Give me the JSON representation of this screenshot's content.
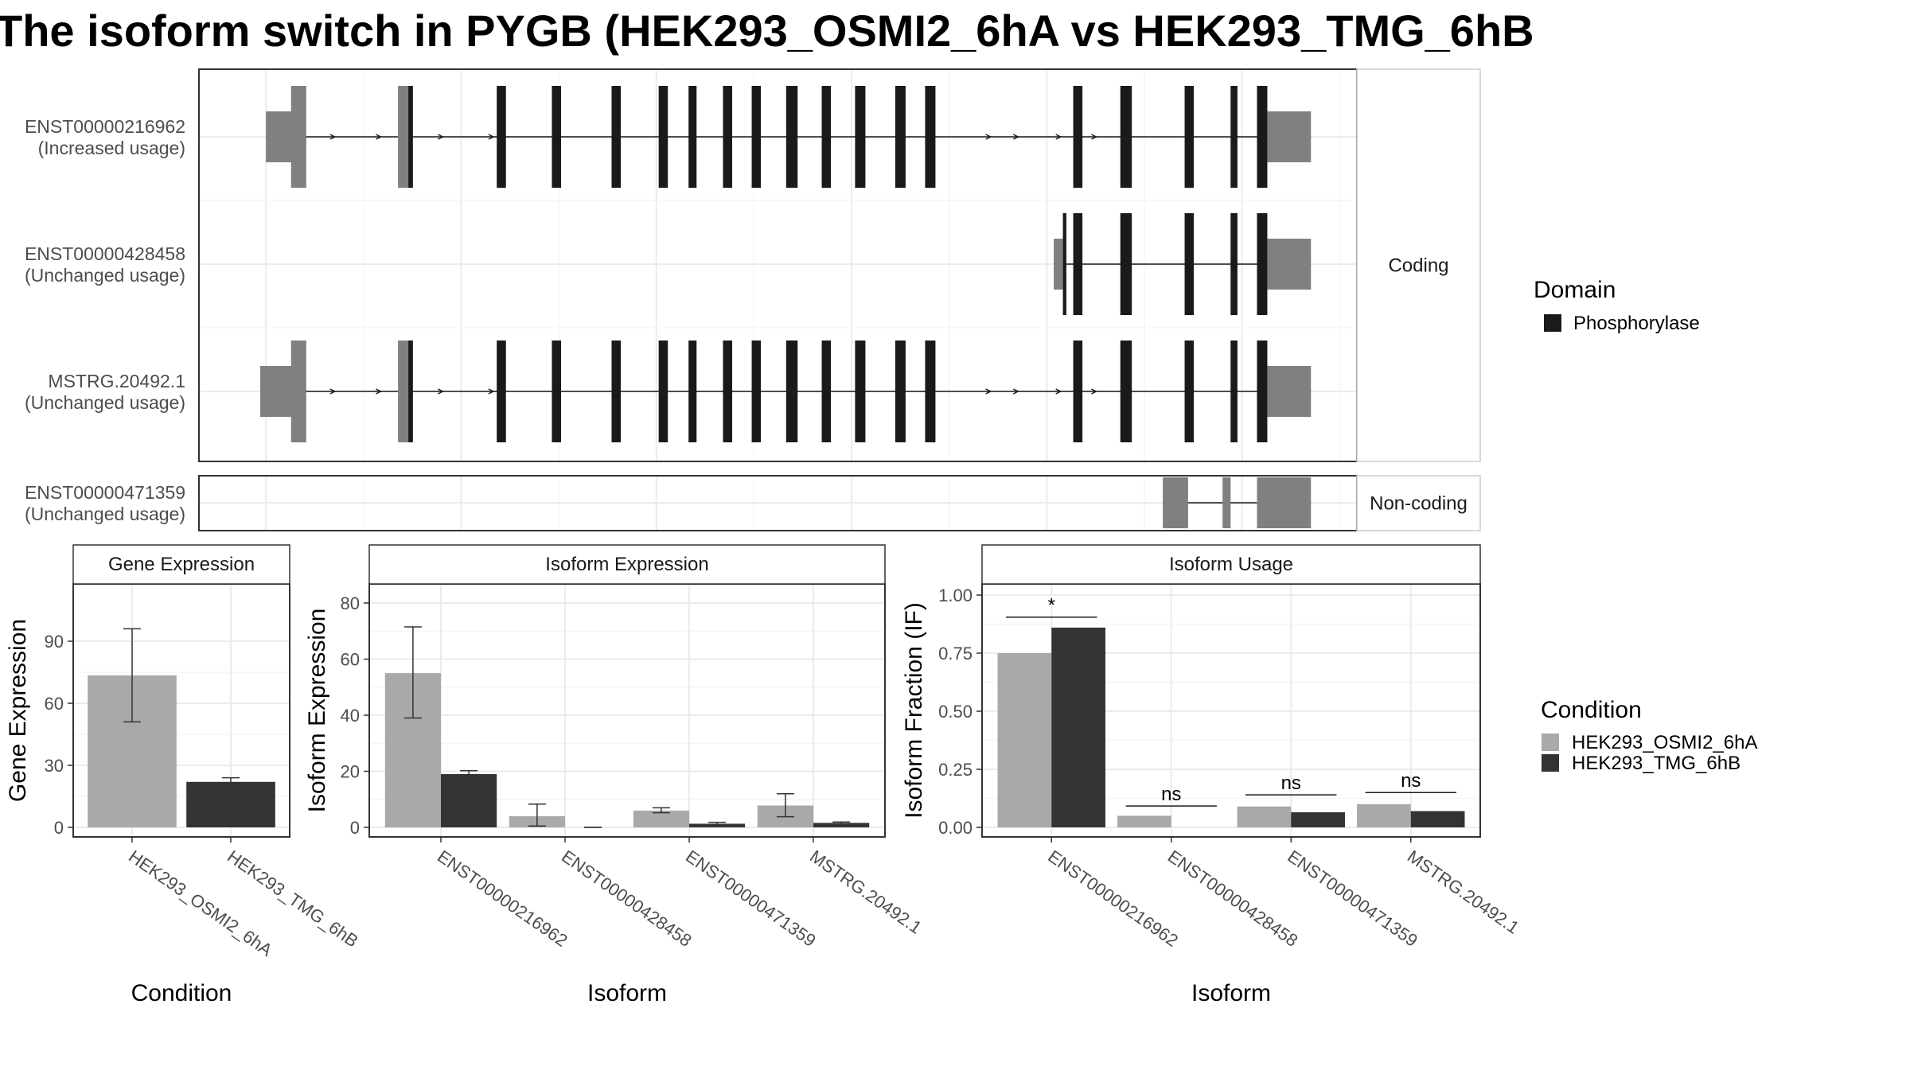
{
  "title": "The isoform switch in PYGB (HEK293_OSMI2_6hA vs HEK293_TMG_6hB",
  "chart_data": [
    {
      "type": "gene-structure",
      "panels": [
        {
          "strip": "Coding",
          "transcripts": [
            {
              "name": "ENST00000216962",
              "usage": "(Increased usage)",
              "exons": [
                [
                  0.05,
                  0.072,
                  "utr"
                ],
                [
                  0.072,
                  0.085,
                  "cds"
                ],
                [
                  0.165,
                  0.174,
                  "utr"
                ],
                [
                  0.174,
                  0.178,
                  "cds"
                ],
                [
                  0.251,
                  0.259,
                  "cds"
                ],
                [
                  0.299,
                  0.307,
                  "cds"
                ],
                [
                  0.351,
                  0.359,
                  "cds"
                ],
                [
                  0.392,
                  0.4,
                  "cds"
                ],
                [
                  0.418,
                  0.425,
                  "cds"
                ],
                [
                  0.448,
                  0.456,
                  "cds"
                ],
                [
                  0.473,
                  0.481,
                  "cds"
                ],
                [
                  0.503,
                  0.513,
                  "cds"
                ],
                [
                  0.534,
                  0.542,
                  "cds"
                ],
                [
                  0.563,
                  0.572,
                  "cds"
                ],
                [
                  0.598,
                  0.607,
                  "cds"
                ],
                [
                  0.624,
                  0.633,
                  "cds"
                ],
                [
                  0.753,
                  0.761,
                  "cds"
                ],
                [
                  0.794,
                  0.804,
                  "cds"
                ],
                [
                  0.85,
                  0.858,
                  "cds"
                ],
                [
                  0.89,
                  0.896,
                  "cds"
                ],
                [
                  0.913,
                  0.922,
                  "cds"
                ],
                [
                  0.922,
                  0.96,
                  "utr"
                ]
              ],
              "arrows": [
                0.11,
                0.15,
                0.204,
                0.248,
                0.681,
                0.705,
                0.742,
                0.773
              ]
            },
            {
              "name": "ENST00000428458",
              "usage": "(Unchanged usage)",
              "exons": [
                [
                  0.736,
                  0.744,
                  "utr"
                ],
                [
                  0.744,
                  0.747,
                  "cds"
                ],
                [
                  0.753,
                  0.761,
                  "cds"
                ],
                [
                  0.794,
                  0.804,
                  "cds"
                ],
                [
                  0.85,
                  0.858,
                  "cds"
                ],
                [
                  0.89,
                  0.896,
                  "cds"
                ],
                [
                  0.913,
                  0.922,
                  "cds"
                ],
                [
                  0.922,
                  0.96,
                  "utr"
                ]
              ],
              "arrows": []
            },
            {
              "name": "MSTRG.20492.1",
              "usage": "(Unchanged usage)",
              "exons": [
                [
                  0.045,
                  0.072,
                  "utr"
                ],
                [
                  0.072,
                  0.085,
                  "cds"
                ],
                [
                  0.165,
                  0.174,
                  "utr"
                ],
                [
                  0.174,
                  0.178,
                  "cds"
                ],
                [
                  0.251,
                  0.259,
                  "cds"
                ],
                [
                  0.299,
                  0.307,
                  "cds"
                ],
                [
                  0.351,
                  0.359,
                  "cds"
                ],
                [
                  0.392,
                  0.4,
                  "cds"
                ],
                [
                  0.418,
                  0.425,
                  "cds"
                ],
                [
                  0.448,
                  0.456,
                  "cds"
                ],
                [
                  0.473,
                  0.481,
                  "cds"
                ],
                [
                  0.503,
                  0.513,
                  "cds"
                ],
                [
                  0.534,
                  0.542,
                  "cds"
                ],
                [
                  0.563,
                  0.572,
                  "cds"
                ],
                [
                  0.598,
                  0.607,
                  "cds"
                ],
                [
                  0.624,
                  0.633,
                  "cds"
                ],
                [
                  0.753,
                  0.761,
                  "cds"
                ],
                [
                  0.794,
                  0.804,
                  "cds"
                ],
                [
                  0.85,
                  0.858,
                  "cds"
                ],
                [
                  0.89,
                  0.896,
                  "cds"
                ],
                [
                  0.913,
                  0.922,
                  "cds"
                ],
                [
                  0.922,
                  0.96,
                  "utr"
                ]
              ],
              "arrows": [
                0.11,
                0.15,
                0.204,
                0.248,
                0.681,
                0.705,
                0.742,
                0.773
              ]
            }
          ]
        },
        {
          "strip": "Non-coding",
          "transcripts": [
            {
              "name": "ENST00000471359",
              "usage": "(Unchanged usage)",
              "exons": [
                [
                  0.831,
                  0.853,
                  "utr"
                ],
                [
                  0.883,
                  0.89,
                  "utr"
                ],
                [
                  0.913,
                  0.96,
                  "utr"
                ]
              ],
              "arrows": []
            }
          ]
        }
      ],
      "legend": {
        "title": "Domain",
        "items": [
          {
            "label": "Phosphorylase",
            "color": "#1a1a1a"
          }
        ]
      }
    },
    {
      "type": "bar",
      "strip": "Gene Expression",
      "xlabel": "Condition",
      "ylabel": "Gene Expression",
      "ylim": [
        0,
        117
      ],
      "yticks": [
        0,
        30,
        60,
        90
      ],
      "categories": [
        "HEK293_OSMI2_6hA",
        "HEK293_TMG_6hB"
      ],
      "series": [
        {
          "values": [
            73.5,
            22
          ],
          "err_low": [
            51,
            20.5
          ],
          "err_high": [
            96,
            24
          ]
        }
      ]
    },
    {
      "type": "bar",
      "strip": "Isoform Expression",
      "xlabel": "Isoform",
      "ylabel": "Isoform Expression",
      "ylim": [
        0,
        85
      ],
      "yticks": [
        0,
        20,
        40,
        60,
        80
      ],
      "categories": [
        "ENST00000216962",
        "ENST00000428458",
        "ENST00000471359",
        "MSTRG.20492.1"
      ],
      "series": [
        {
          "name": "HEK293_OSMI2_6hA",
          "values": [
            55,
            4,
            6,
            7.8
          ],
          "err_low": [
            39,
            0.5,
            5.2,
            3.8
          ],
          "err_high": [
            71.5,
            8.3,
            7,
            12
          ]
        },
        {
          "name": "HEK293_TMG_6hB",
          "values": [
            19,
            0,
            1.3,
            1.6
          ],
          "err_low": [
            17.6,
            0,
            1,
            1.3
          ],
          "err_high": [
            20.2,
            0,
            1.8,
            1.9
          ]
        }
      ]
    },
    {
      "type": "bar",
      "strip": "Isoform Usage",
      "xlabel": "Isoform",
      "ylabel": "Isoform Fraction (IF)",
      "ylim": [
        0,
        1.0
      ],
      "yticks": [
        0.0,
        0.25,
        0.5,
        0.75,
        1.0
      ],
      "ytick_labels": [
        "0.00",
        "0.25",
        "0.50",
        "0.75",
        "1.00"
      ],
      "categories": [
        "ENST00000216962",
        "ENST00000428458",
        "ENST00000471359",
        "MSTRG.20492.1"
      ],
      "series": [
        {
          "name": "HEK293_OSMI2_6hA",
          "values": [
            0.75,
            0.05,
            0.09,
            0.1
          ]
        },
        {
          "name": "HEK293_TMG_6hB",
          "values": [
            0.86,
            0.0,
            0.065,
            0.07
          ]
        }
      ],
      "significance": [
        {
          "label": "*",
          "y": 0.905
        },
        {
          "label": "ns",
          "y": 0.092
        },
        {
          "label": "ns",
          "y": 0.14
        },
        {
          "label": "ns",
          "y": 0.15
        }
      ],
      "legend": {
        "title": "Condition",
        "items": [
          {
            "label": "HEK293_OSMI2_6hA",
            "color": "#a9a9a9"
          },
          {
            "label": "HEK293_TMG_6hB",
            "color": "#333333"
          }
        ]
      }
    }
  ]
}
